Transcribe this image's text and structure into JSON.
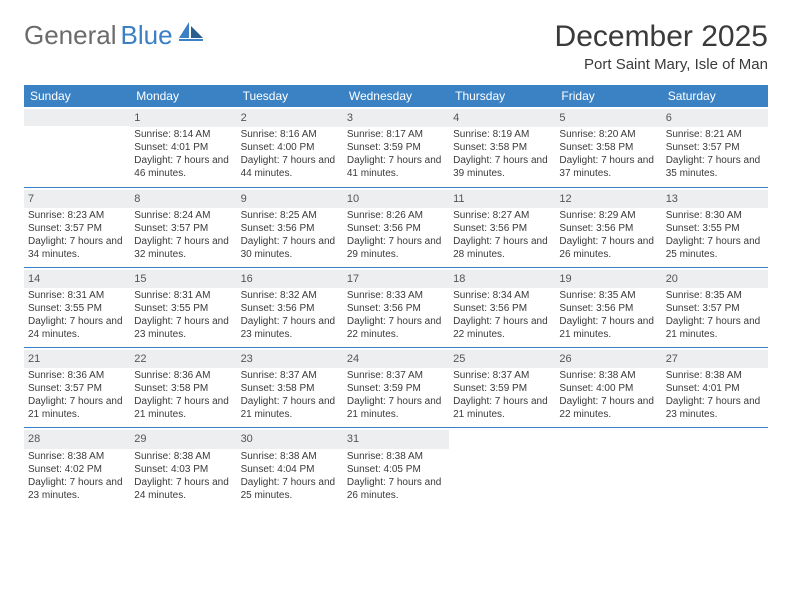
{
  "brand": {
    "part1": "General",
    "part2": "Blue"
  },
  "title": "December 2025",
  "location": "Port Saint Mary, Isle of Man",
  "colors": {
    "header_bg": "#3b82c4",
    "header_text": "#ffffff",
    "daynum_bg": "#eceef0",
    "border": "#3b7fc4",
    "text": "#3a3a3a",
    "logo_gray": "#6b6b6b",
    "logo_blue": "#3b7fc4"
  },
  "weekdays": [
    "Sunday",
    "Monday",
    "Tuesday",
    "Wednesday",
    "Thursday",
    "Friday",
    "Saturday"
  ],
  "weeks": [
    [
      null,
      {
        "n": "1",
        "sunrise": "8:14 AM",
        "sunset": "4:01 PM",
        "daylight": "7 hours and 46 minutes."
      },
      {
        "n": "2",
        "sunrise": "8:16 AM",
        "sunset": "4:00 PM",
        "daylight": "7 hours and 44 minutes."
      },
      {
        "n": "3",
        "sunrise": "8:17 AM",
        "sunset": "3:59 PM",
        "daylight": "7 hours and 41 minutes."
      },
      {
        "n": "4",
        "sunrise": "8:19 AM",
        "sunset": "3:58 PM",
        "daylight": "7 hours and 39 minutes."
      },
      {
        "n": "5",
        "sunrise": "8:20 AM",
        "sunset": "3:58 PM",
        "daylight": "7 hours and 37 minutes."
      },
      {
        "n": "6",
        "sunrise": "8:21 AM",
        "sunset": "3:57 PM",
        "daylight": "7 hours and 35 minutes."
      }
    ],
    [
      {
        "n": "7",
        "sunrise": "8:23 AM",
        "sunset": "3:57 PM",
        "daylight": "7 hours and 34 minutes."
      },
      {
        "n": "8",
        "sunrise": "8:24 AM",
        "sunset": "3:57 PM",
        "daylight": "7 hours and 32 minutes."
      },
      {
        "n": "9",
        "sunrise": "8:25 AM",
        "sunset": "3:56 PM",
        "daylight": "7 hours and 30 minutes."
      },
      {
        "n": "10",
        "sunrise": "8:26 AM",
        "sunset": "3:56 PM",
        "daylight": "7 hours and 29 minutes."
      },
      {
        "n": "11",
        "sunrise": "8:27 AM",
        "sunset": "3:56 PM",
        "daylight": "7 hours and 28 minutes."
      },
      {
        "n": "12",
        "sunrise": "8:29 AM",
        "sunset": "3:56 PM",
        "daylight": "7 hours and 26 minutes."
      },
      {
        "n": "13",
        "sunrise": "8:30 AM",
        "sunset": "3:55 PM",
        "daylight": "7 hours and 25 minutes."
      }
    ],
    [
      {
        "n": "14",
        "sunrise": "8:31 AM",
        "sunset": "3:55 PM",
        "daylight": "7 hours and 24 minutes."
      },
      {
        "n": "15",
        "sunrise": "8:31 AM",
        "sunset": "3:55 PM",
        "daylight": "7 hours and 23 minutes."
      },
      {
        "n": "16",
        "sunrise": "8:32 AM",
        "sunset": "3:56 PM",
        "daylight": "7 hours and 23 minutes."
      },
      {
        "n": "17",
        "sunrise": "8:33 AM",
        "sunset": "3:56 PM",
        "daylight": "7 hours and 22 minutes."
      },
      {
        "n": "18",
        "sunrise": "8:34 AM",
        "sunset": "3:56 PM",
        "daylight": "7 hours and 22 minutes."
      },
      {
        "n": "19",
        "sunrise": "8:35 AM",
        "sunset": "3:56 PM",
        "daylight": "7 hours and 21 minutes."
      },
      {
        "n": "20",
        "sunrise": "8:35 AM",
        "sunset": "3:57 PM",
        "daylight": "7 hours and 21 minutes."
      }
    ],
    [
      {
        "n": "21",
        "sunrise": "8:36 AM",
        "sunset": "3:57 PM",
        "daylight": "7 hours and 21 minutes."
      },
      {
        "n": "22",
        "sunrise": "8:36 AM",
        "sunset": "3:58 PM",
        "daylight": "7 hours and 21 minutes."
      },
      {
        "n": "23",
        "sunrise": "8:37 AM",
        "sunset": "3:58 PM",
        "daylight": "7 hours and 21 minutes."
      },
      {
        "n": "24",
        "sunrise": "8:37 AM",
        "sunset": "3:59 PM",
        "daylight": "7 hours and 21 minutes."
      },
      {
        "n": "25",
        "sunrise": "8:37 AM",
        "sunset": "3:59 PM",
        "daylight": "7 hours and 21 minutes."
      },
      {
        "n": "26",
        "sunrise": "8:38 AM",
        "sunset": "4:00 PM",
        "daylight": "7 hours and 22 minutes."
      },
      {
        "n": "27",
        "sunrise": "8:38 AM",
        "sunset": "4:01 PM",
        "daylight": "7 hours and 23 minutes."
      }
    ],
    [
      {
        "n": "28",
        "sunrise": "8:38 AM",
        "sunset": "4:02 PM",
        "daylight": "7 hours and 23 minutes."
      },
      {
        "n": "29",
        "sunrise": "8:38 AM",
        "sunset": "4:03 PM",
        "daylight": "7 hours and 24 minutes."
      },
      {
        "n": "30",
        "sunrise": "8:38 AM",
        "sunset": "4:04 PM",
        "daylight": "7 hours and 25 minutes."
      },
      {
        "n": "31",
        "sunrise": "8:38 AM",
        "sunset": "4:05 PM",
        "daylight": "7 hours and 26 minutes."
      },
      null,
      null,
      null
    ]
  ]
}
